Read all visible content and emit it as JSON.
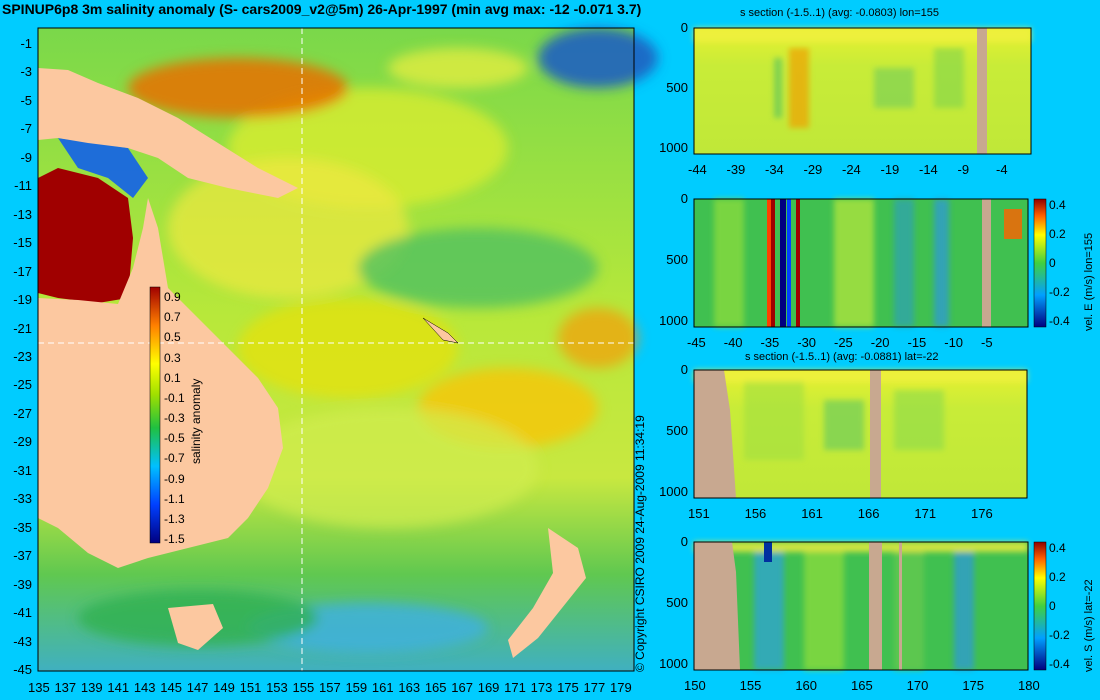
{
  "map": {
    "title": "SPINUP6p8 3m salinity anomaly (S- cars2009_v2@5m) 26-Apr-1997 (min avg max: -12 -0.071 3.7)",
    "y_ticks": [
      "-1",
      "-3",
      "-5",
      "-7",
      "-9",
      "-11",
      "-13",
      "-15",
      "-17",
      "-19",
      "-21",
      "-23",
      "-25",
      "-27",
      "-29",
      "-31",
      "-33",
      "-35",
      "-37",
      "-39",
      "-41",
      "-43",
      "-45"
    ],
    "x_ticks": [
      "135",
      "137",
      "139",
      "141",
      "143",
      "145",
      "147",
      "149",
      "151",
      "153",
      "155",
      "157",
      "159",
      "161",
      "163",
      "165",
      "167",
      "169",
      "171",
      "173",
      "175",
      "177",
      "179"
    ],
    "colorbar_label": "salinity anomaly",
    "colorbar_ticks": [
      "0.9",
      "0.7",
      "0.5",
      "0.3",
      "0.1",
      "-0.1",
      "-0.3",
      "-0.5",
      "-0.7",
      "-0.9",
      "-1.1",
      "-1.3",
      "-1.5"
    ]
  },
  "copyright": "© Copyright CSIRO 2009   24-Aug-2009 11:34:19",
  "panels": [
    {
      "title": "s section (-1.5..1) (avg: -0.0803) lon=155",
      "y_ticks": [
        "0",
        "500",
        "1000"
      ],
      "x_ticks": [
        "-44",
        "-39",
        "-34",
        "-29",
        "-24",
        "-19",
        "-14",
        "-9",
        "-4"
      ],
      "colorbar": null
    },
    {
      "title": "",
      "y_ticks": [
        "0",
        "500",
        "1000"
      ],
      "x_ticks": [
        "-45",
        "-40",
        "-35",
        "-30",
        "-25",
        "-20",
        "-15",
        "-10",
        "-5"
      ],
      "colorbar": {
        "label": "vel. E (m/s) lon=155",
        "ticks": [
          "0.4",
          "0.2",
          "0",
          "-0.2",
          "-0.4"
        ]
      }
    },
    {
      "title": "s section (-1.5..1) (avg: -0.0881) lat=-22",
      "y_ticks": [
        "0",
        "500",
        "1000"
      ],
      "x_ticks": [
        "151",
        "156",
        "161",
        "166",
        "171",
        "176"
      ],
      "colorbar": null
    },
    {
      "title": "",
      "y_ticks": [
        "0",
        "500",
        "1000"
      ],
      "x_ticks": [
        "150",
        "155",
        "160",
        "165",
        "170",
        "175",
        "180"
      ],
      "colorbar": {
        "label": "vel. S (m/s) lat=-22",
        "ticks": [
          "0.4",
          "0.2",
          "0",
          "-0.2",
          "-0.4"
        ]
      }
    }
  ],
  "chart_data": [
    {
      "type": "heatmap",
      "title": "SPINUP6p8 3m salinity anomaly (S- cars2009_v2@5m) 26-Apr-1997 (min avg max: -12 -0.071 3.7)",
      "xlabel": "",
      "ylabel": "",
      "xlim": [
        135,
        180
      ],
      "ylim": [
        -45,
        0
      ],
      "colorbar": {
        "label": "salinity anomaly",
        "range": [
          -1.5,
          1.0
        ]
      },
      "summary": {
        "min": -12,
        "avg": -0.071,
        "max": 3.7
      }
    },
    {
      "type": "heatmap",
      "title": "s section (-1.5..1) (avg: -0.0803) lon=155",
      "xlim": [
        -45,
        0
      ],
      "ylim": [
        1050,
        0
      ],
      "avg": -0.0803
    },
    {
      "type": "heatmap",
      "title": "",
      "xlim": [
        -45,
        0
      ],
      "ylim": [
        1050,
        0
      ],
      "colorbar": {
        "label": "vel. E (m/s) lon=155",
        "range": [
          -0.4,
          0.4
        ]
      }
    },
    {
      "type": "heatmap",
      "title": "s section (-1.5..1) (avg: -0.0881) lat=-22",
      "xlim": [
        150,
        180
      ],
      "ylim": [
        1050,
        0
      ],
      "avg": -0.0881
    },
    {
      "type": "heatmap",
      "title": "",
      "xlim": [
        150,
        180
      ],
      "ylim": [
        1050,
        0
      ],
      "colorbar": {
        "label": "vel. S (m/s) lat=-22",
        "range": [
          -0.4,
          0.4
        ]
      }
    }
  ]
}
